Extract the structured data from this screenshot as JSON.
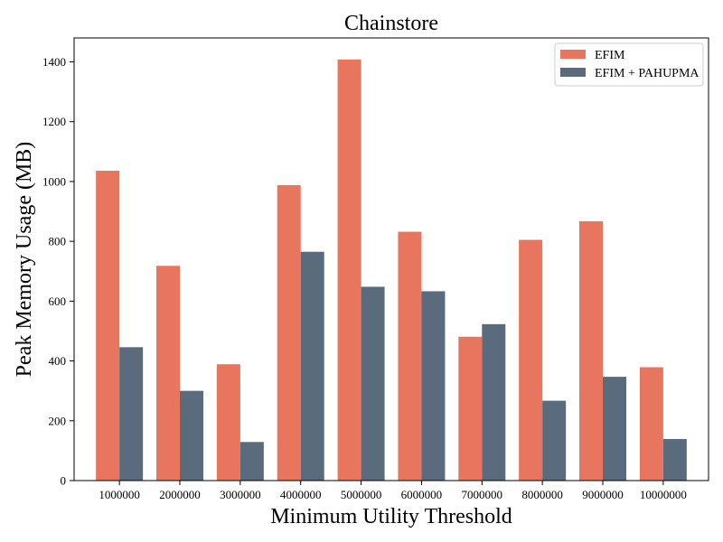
{
  "chart_data": {
    "type": "bar",
    "title": "Chainstore",
    "xlabel": "Minimum Utility Threshold",
    "ylabel": "Peak Memory Usage (MB)",
    "categories": [
      "1000000",
      "2000000",
      "3000000",
      "4000000",
      "5000000",
      "6000000",
      "7000000",
      "8000000",
      "9000000",
      "10000000"
    ],
    "series": [
      {
        "name": "EFIM",
        "color": "#E8765E",
        "values": [
          1036,
          718,
          389,
          988,
          1408,
          832,
          481,
          805,
          867,
          379
        ]
      },
      {
        "name": "EFIM + PAHUPMA",
        "color": "#5A6B7E",
        "values": [
          446,
          300,
          129,
          765,
          648,
          633,
          523,
          267,
          347,
          139
        ]
      }
    ],
    "ylim": [
      0,
      1480
    ],
    "yticks": [
      0,
      200,
      400,
      600,
      800,
      1000,
      1200,
      1400
    ],
    "grid": false,
    "legend_position": "top-right"
  }
}
